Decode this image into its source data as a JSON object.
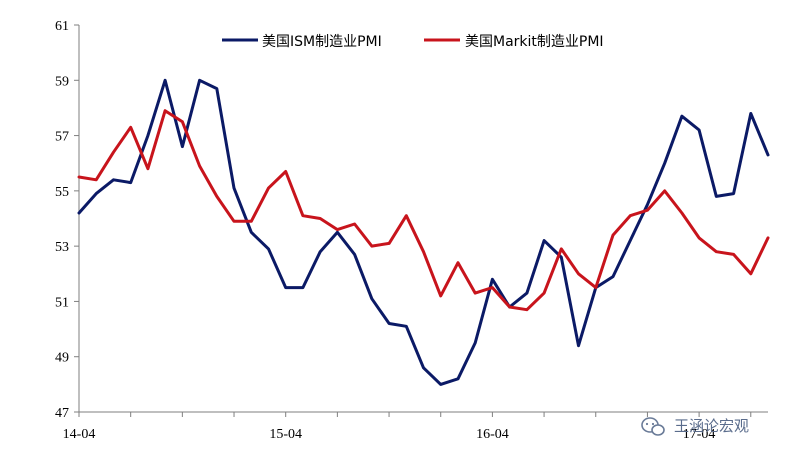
{
  "chart_data": {
    "type": "line",
    "title": "",
    "xlabel": "",
    "ylabel": "",
    "ylim": [
      47,
      61
    ],
    "yticks": [
      47,
      49,
      51,
      53,
      55,
      57,
      59,
      61
    ],
    "x_tick_labels": [
      "14-04",
      "15-04",
      "16-04",
      "17-04"
    ],
    "x_tick_positions": [
      0,
      12,
      24,
      36
    ],
    "grid": false,
    "legend_position": "top-right",
    "series": [
      {
        "name": "美国ISM制造业PMI",
        "color": "#0b1a66",
        "values": [
          54.2,
          54.9,
          55.4,
          55.3,
          57.0,
          59.0,
          56.6,
          59.0,
          58.7,
          55.1,
          53.5,
          52.9,
          51.5,
          51.5,
          52.8,
          53.5,
          52.7,
          51.1,
          50.2,
          50.1,
          48.6,
          48.0,
          48.2,
          49.5,
          51.8,
          50.8,
          51.3,
          53.2,
          52.6,
          49.4,
          51.5,
          51.9,
          53.2,
          54.5,
          56.0,
          57.7,
          57.2,
          54.8,
          54.9,
          57.8,
          56.3
        ]
      },
      {
        "name": "美国Markit制造业PMI",
        "color": "#c8141c",
        "values": [
          55.5,
          55.4,
          56.4,
          57.3,
          55.8,
          57.9,
          57.5,
          55.9,
          54.8,
          53.9,
          53.9,
          55.1,
          55.7,
          54.1,
          54.0,
          53.6,
          53.8,
          53.0,
          53.1,
          54.1,
          52.8,
          51.2,
          52.4,
          51.3,
          51.5,
          50.8,
          50.7,
          51.3,
          52.9,
          52.0,
          51.5,
          53.4,
          54.1,
          54.3,
          55.0,
          54.2,
          53.3,
          52.8,
          52.7,
          52.0,
          53.3
        ]
      }
    ]
  },
  "watermark": {
    "icon": "wechat-icon",
    "text": "王涵论宏观"
  }
}
